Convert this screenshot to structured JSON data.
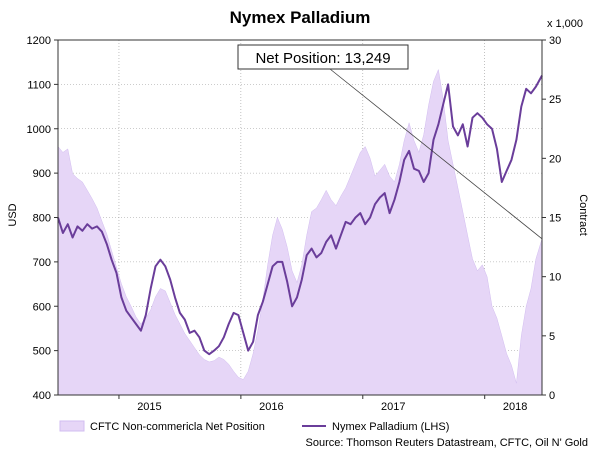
{
  "chart_data": {
    "type": "area",
    "title": "Nymex Palladium",
    "annotation": "Net Position: 13,249",
    "source": "Source: Thomson Reuters Datastream, CFTC, Oil N' Gold",
    "y_left": {
      "label": "USD",
      "range": [
        400,
        1200
      ],
      "ticks": [
        "400",
        "500",
        "600",
        "700",
        "800",
        "900",
        "1000",
        "1100",
        "1200"
      ]
    },
    "y_right": {
      "label": "Contract",
      "unit_label": "x 1,000",
      "range": [
        0,
        30
      ],
      "ticks": [
        "0",
        "5",
        "10",
        "15",
        "20",
        "25",
        "30"
      ]
    },
    "x_axis": {
      "range": [
        2014.5,
        2018.47
      ],
      "ticks": [
        {
          "label": "2015",
          "at": 2015.0
        },
        {
          "label": "2016",
          "at": 2016.0
        },
        {
          "label": "2017",
          "at": 2017.0
        },
        {
          "label": "2018",
          "at": 2018.0
        }
      ]
    },
    "grid": true,
    "legend_position": "bottom",
    "series": [
      {
        "name": "CFTC Non-commericla Net Position",
        "axis": "right",
        "style": "area",
        "color": "#e6d6f7",
        "points": [
          [
            2014.5,
            21.0
          ],
          [
            2014.54,
            20.5
          ],
          [
            2014.58,
            20.8
          ],
          [
            2014.62,
            18.7
          ],
          [
            2014.66,
            18.3
          ],
          [
            2014.7,
            18.0
          ],
          [
            2014.74,
            17.3
          ],
          [
            2014.78,
            16.6
          ],
          [
            2014.82,
            15.8
          ],
          [
            2014.86,
            14.7
          ],
          [
            2014.9,
            13.6
          ],
          [
            2014.94,
            12.2
          ],
          [
            2014.98,
            10.8
          ],
          [
            2015.02,
            9.4
          ],
          [
            2015.06,
            8.3
          ],
          [
            2015.1,
            7.5
          ],
          [
            2015.14,
            6.6
          ],
          [
            2015.18,
            6.0
          ],
          [
            2015.22,
            6.5
          ],
          [
            2015.26,
            7.2
          ],
          [
            2015.3,
            8.3
          ],
          [
            2015.34,
            9.0
          ],
          [
            2015.38,
            8.8
          ],
          [
            2015.42,
            7.8
          ],
          [
            2015.46,
            6.8
          ],
          [
            2015.5,
            6.0
          ],
          [
            2015.54,
            5.2
          ],
          [
            2015.58,
            4.6
          ],
          [
            2015.62,
            4.0
          ],
          [
            2015.66,
            3.4
          ],
          [
            2015.7,
            3.0
          ],
          [
            2015.74,
            2.8
          ],
          [
            2015.78,
            2.9
          ],
          [
            2015.82,
            3.2
          ],
          [
            2015.86,
            3.0
          ],
          [
            2015.9,
            2.6
          ],
          [
            2015.94,
            2.0
          ],
          [
            2015.98,
            1.5
          ],
          [
            2016.02,
            1.3
          ],
          [
            2016.06,
            2.0
          ],
          [
            2016.1,
            3.5
          ],
          [
            2016.14,
            5.5
          ],
          [
            2016.18,
            8.0
          ],
          [
            2016.22,
            11.0
          ],
          [
            2016.26,
            13.5
          ],
          [
            2016.3,
            15.0
          ],
          [
            2016.34,
            14.0
          ],
          [
            2016.38,
            12.5
          ],
          [
            2016.42,
            10.5
          ],
          [
            2016.46,
            9.5
          ],
          [
            2016.5,
            11.0
          ],
          [
            2016.54,
            13.5
          ],
          [
            2016.58,
            15.5
          ],
          [
            2016.62,
            15.8
          ],
          [
            2016.66,
            16.5
          ],
          [
            2016.7,
            17.3
          ],
          [
            2016.74,
            16.5
          ],
          [
            2016.78,
            16.0
          ],
          [
            2016.82,
            16.8
          ],
          [
            2016.86,
            17.5
          ],
          [
            2016.9,
            18.5
          ],
          [
            2016.94,
            19.5
          ],
          [
            2016.98,
            20.5
          ],
          [
            2017.02,
            21.0
          ],
          [
            2017.06,
            20.0
          ],
          [
            2017.1,
            18.5
          ],
          [
            2017.14,
            19.0
          ],
          [
            2017.18,
            19.5
          ],
          [
            2017.22,
            18.5
          ],
          [
            2017.26,
            18.0
          ],
          [
            2017.3,
            19.5
          ],
          [
            2017.34,
            21.5
          ],
          [
            2017.38,
            23.0
          ],
          [
            2017.42,
            21.5
          ],
          [
            2017.46,
            20.5
          ],
          [
            2017.5,
            22.0
          ],
          [
            2017.54,
            24.5
          ],
          [
            2017.58,
            26.5
          ],
          [
            2017.62,
            27.5
          ],
          [
            2017.66,
            25.0
          ],
          [
            2017.7,
            21.5
          ],
          [
            2017.74,
            19.5
          ],
          [
            2017.78,
            17.5
          ],
          [
            2017.82,
            15.5
          ],
          [
            2017.86,
            13.5
          ],
          [
            2017.9,
            11.5
          ],
          [
            2017.94,
            10.5
          ],
          [
            2017.98,
            11.0
          ],
          [
            2018.02,
            10.0
          ],
          [
            2018.06,
            7.5
          ],
          [
            2018.1,
            6.5
          ],
          [
            2018.14,
            5.0
          ],
          [
            2018.18,
            3.5
          ],
          [
            2018.22,
            2.5
          ],
          [
            2018.26,
            1.0
          ],
          [
            2018.3,
            5.0
          ],
          [
            2018.34,
            7.5
          ],
          [
            2018.38,
            9.0
          ],
          [
            2018.42,
            11.5
          ],
          [
            2018.47,
            13.2
          ]
        ]
      },
      {
        "name": "Nymex Palladium (LHS)",
        "axis": "left",
        "style": "line",
        "color": "#6a3d9a",
        "points": [
          [
            2014.5,
            800
          ],
          [
            2014.54,
            765
          ],
          [
            2014.58,
            785
          ],
          [
            2014.62,
            755
          ],
          [
            2014.66,
            780
          ],
          [
            2014.7,
            770
          ],
          [
            2014.74,
            785
          ],
          [
            2014.78,
            775
          ],
          [
            2014.82,
            780
          ],
          [
            2014.86,
            768
          ],
          [
            2014.9,
            740
          ],
          [
            2014.94,
            705
          ],
          [
            2014.98,
            675
          ],
          [
            2015.02,
            620
          ],
          [
            2015.06,
            590
          ],
          [
            2015.1,
            575
          ],
          [
            2015.14,
            560
          ],
          [
            2015.18,
            545
          ],
          [
            2015.22,
            580
          ],
          [
            2015.26,
            640
          ],
          [
            2015.3,
            690
          ],
          [
            2015.34,
            705
          ],
          [
            2015.38,
            690
          ],
          [
            2015.42,
            660
          ],
          [
            2015.46,
            620
          ],
          [
            2015.5,
            585
          ],
          [
            2015.54,
            570
          ],
          [
            2015.58,
            540
          ],
          [
            2015.62,
            545
          ],
          [
            2015.66,
            530
          ],
          [
            2015.7,
            500
          ],
          [
            2015.74,
            492
          ],
          [
            2015.78,
            500
          ],
          [
            2015.82,
            510
          ],
          [
            2015.86,
            530
          ],
          [
            2015.9,
            560
          ],
          [
            2015.94,
            585
          ],
          [
            2015.98,
            580
          ],
          [
            2016.02,
            540
          ],
          [
            2016.06,
            500
          ],
          [
            2016.1,
            520
          ],
          [
            2016.14,
            580
          ],
          [
            2016.18,
            610
          ],
          [
            2016.22,
            650
          ],
          [
            2016.26,
            690
          ],
          [
            2016.3,
            700
          ],
          [
            2016.34,
            700
          ],
          [
            2016.38,
            655
          ],
          [
            2016.42,
            600
          ],
          [
            2016.46,
            620
          ],
          [
            2016.5,
            660
          ],
          [
            2016.54,
            715
          ],
          [
            2016.58,
            730
          ],
          [
            2016.62,
            710
          ],
          [
            2016.66,
            720
          ],
          [
            2016.7,
            745
          ],
          [
            2016.74,
            760
          ],
          [
            2016.78,
            730
          ],
          [
            2016.82,
            760
          ],
          [
            2016.86,
            790
          ],
          [
            2016.9,
            785
          ],
          [
            2016.94,
            800
          ],
          [
            2016.98,
            810
          ],
          [
            2017.02,
            785
          ],
          [
            2017.06,
            800
          ],
          [
            2017.1,
            830
          ],
          [
            2017.14,
            845
          ],
          [
            2017.18,
            855
          ],
          [
            2017.22,
            810
          ],
          [
            2017.26,
            840
          ],
          [
            2017.3,
            880
          ],
          [
            2017.34,
            930
          ],
          [
            2017.38,
            950
          ],
          [
            2017.42,
            910
          ],
          [
            2017.46,
            905
          ],
          [
            2017.5,
            880
          ],
          [
            2017.54,
            900
          ],
          [
            2017.58,
            975
          ],
          [
            2017.62,
            1010
          ],
          [
            2017.66,
            1055
          ],
          [
            2017.7,
            1100
          ],
          [
            2017.74,
            1005
          ],
          [
            2017.78,
            985
          ],
          [
            2017.82,
            1010
          ],
          [
            2017.86,
            960
          ],
          [
            2017.9,
            1025
          ],
          [
            2017.94,
            1035
          ],
          [
            2017.98,
            1025
          ],
          [
            2018.02,
            1010
          ],
          [
            2018.06,
            1000
          ],
          [
            2018.1,
            955
          ],
          [
            2018.14,
            880
          ],
          [
            2018.18,
            905
          ],
          [
            2018.22,
            930
          ],
          [
            2018.26,
            975
          ],
          [
            2018.3,
            1050
          ],
          [
            2018.34,
            1090
          ],
          [
            2018.38,
            1080
          ],
          [
            2018.42,
            1095
          ],
          [
            2018.47,
            1120
          ]
        ]
      }
    ]
  }
}
